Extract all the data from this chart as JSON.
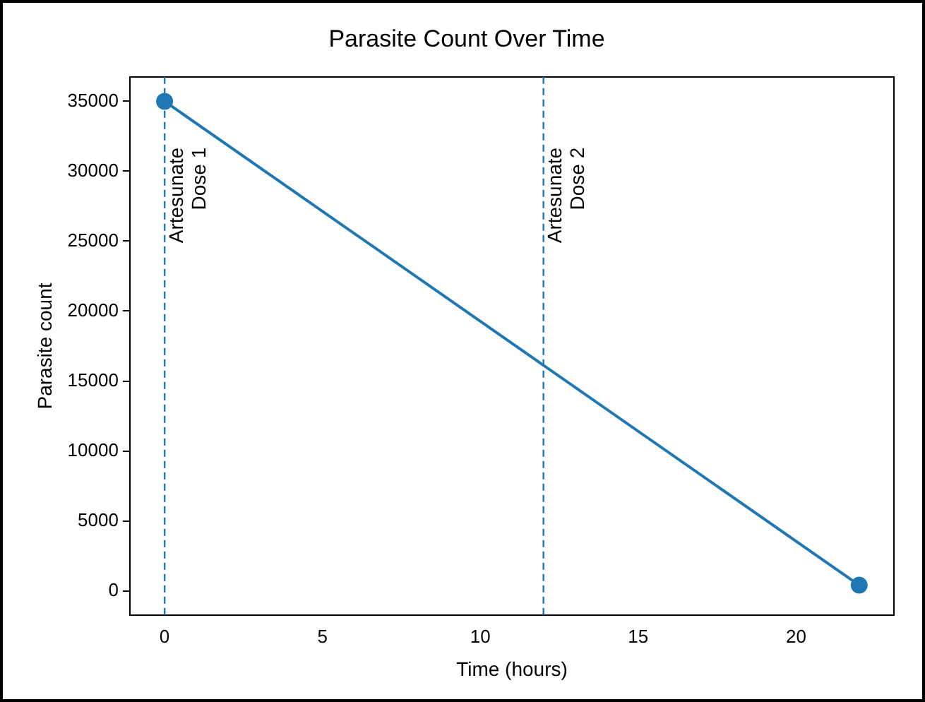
{
  "chart_data": {
    "type": "line",
    "title": "Parasite Count Over Time",
    "xlabel": "Time (hours)",
    "ylabel": "Parasite count",
    "x": [
      0,
      22
    ],
    "series": [
      {
        "color": "#1f77b4",
        "values": [
          35000,
          400
        ]
      }
    ],
    "marker": "circle",
    "line_style": "solid",
    "grid": false,
    "legend": false,
    "xlim": [
      -1.1,
      23.1
    ],
    "xticks": [
      0,
      5,
      10,
      15,
      20
    ],
    "ylim": [
      -1750,
      36750
    ],
    "yticks": [
      0,
      5000,
      10000,
      15000,
      20000,
      25000,
      30000,
      35000
    ],
    "ref_lines": [
      {
        "axis": "x",
        "value": 0,
        "label": "Artesunate\nDose 1",
        "color": "#1f77b4",
        "line_style": "dashed"
      },
      {
        "axis": "x",
        "value": 12,
        "label": "Artesunate\nDose 2",
        "color": "#1f77b4",
        "line_style": "dashed"
      }
    ]
  }
}
